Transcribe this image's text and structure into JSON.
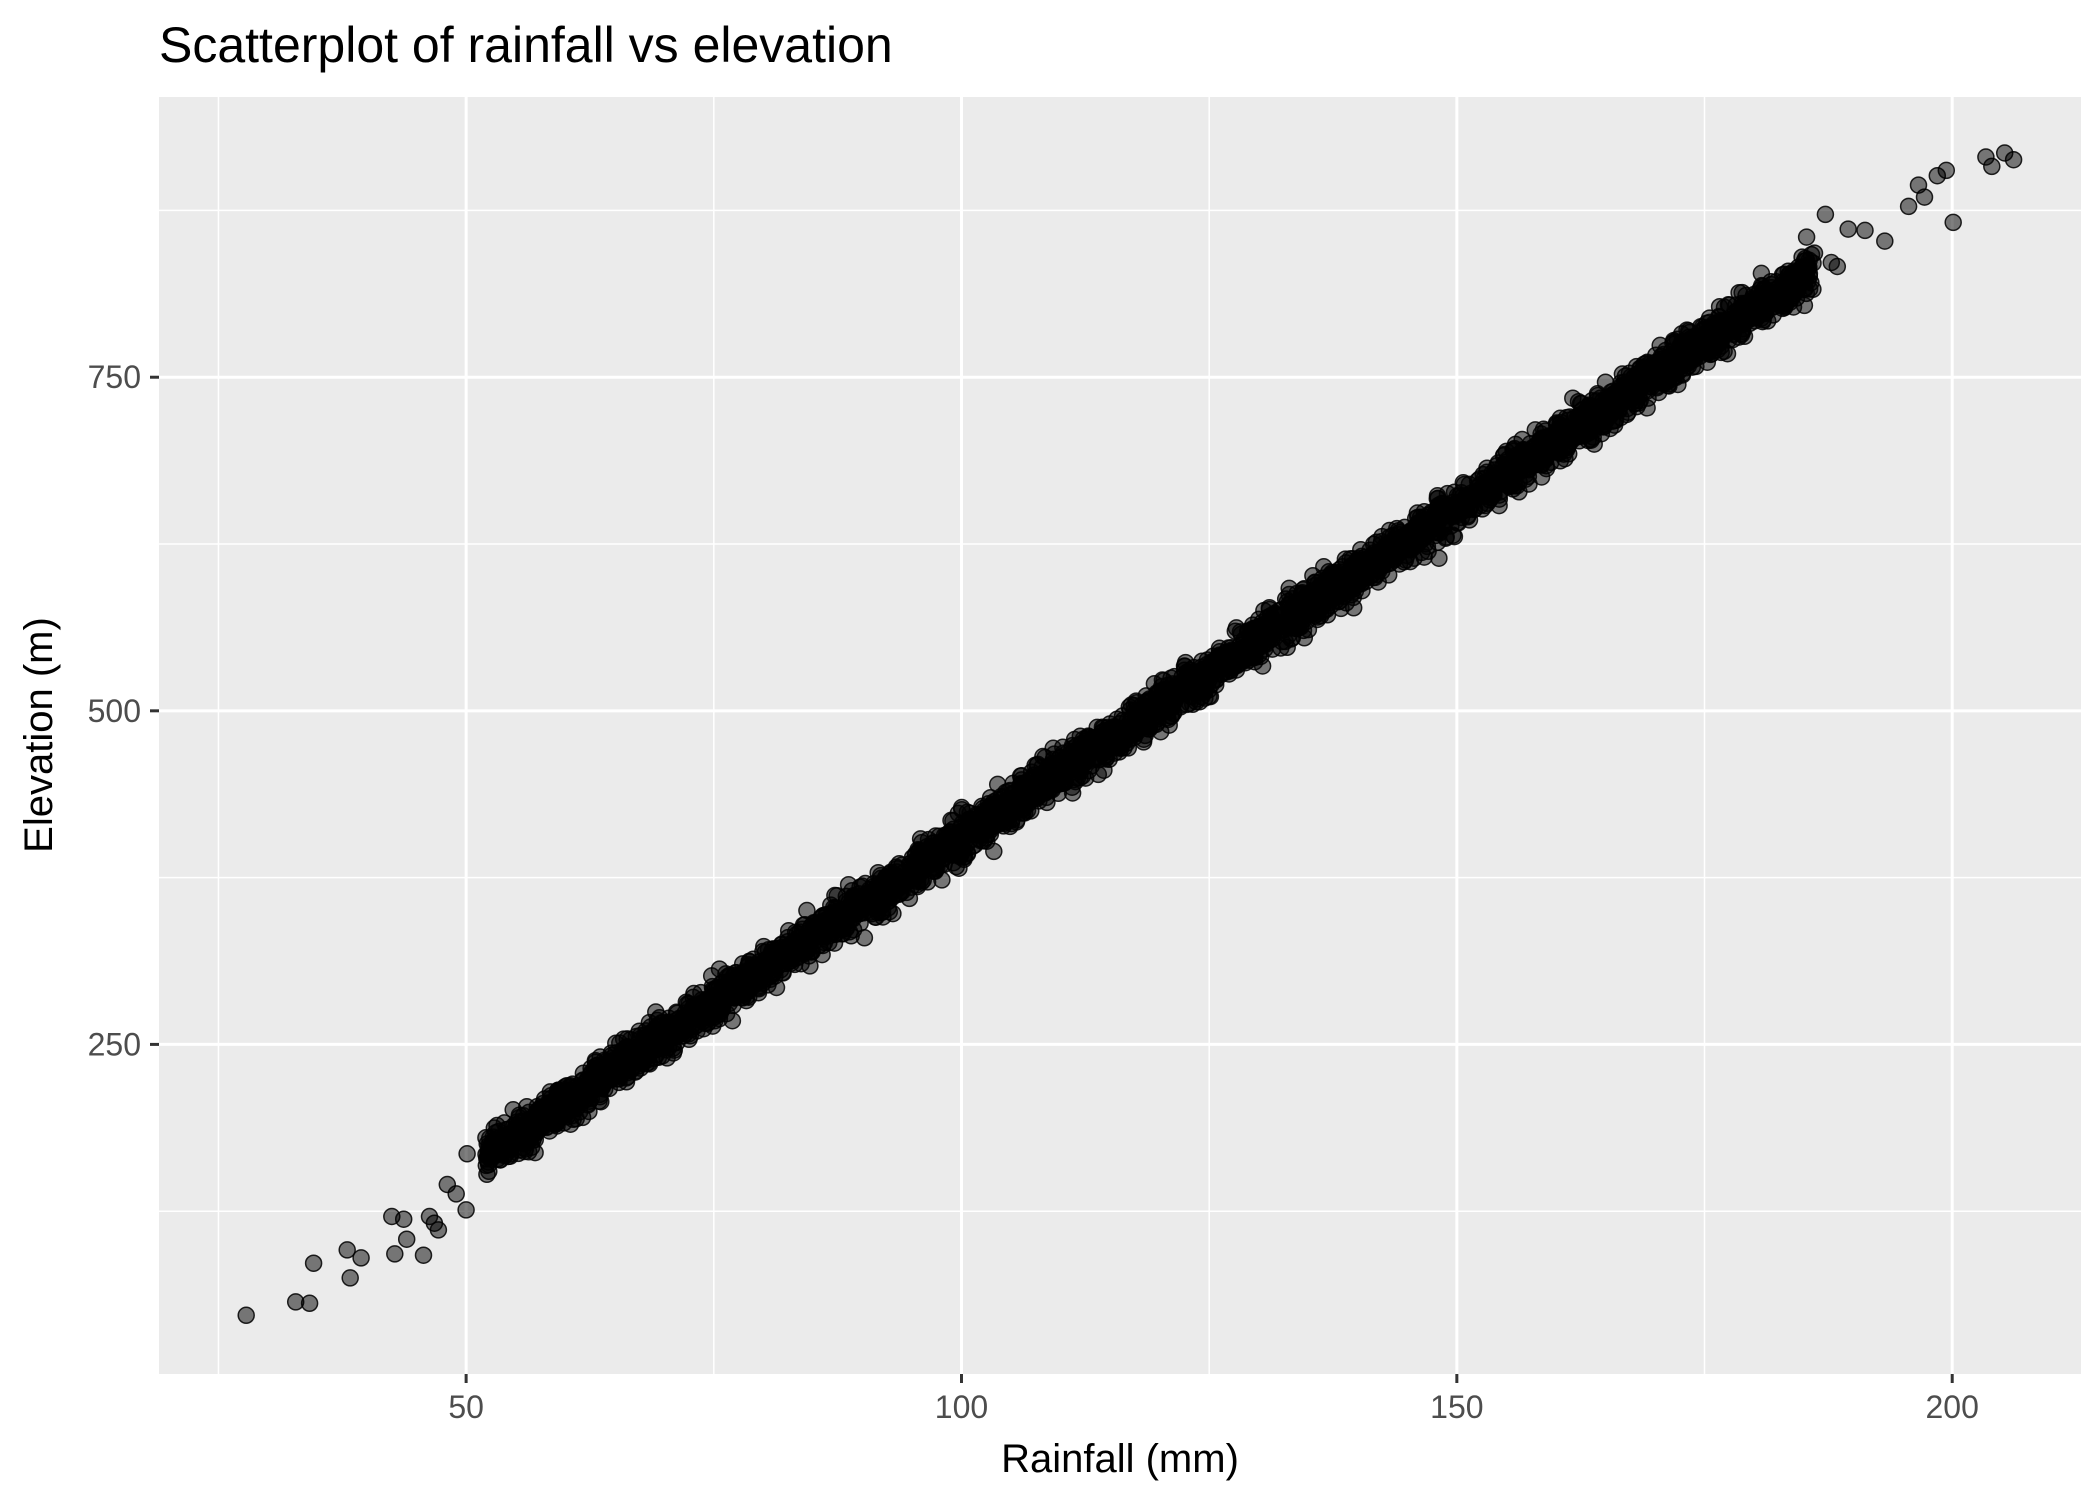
{
  "chart_data": {
    "type": "scatter",
    "title": "Scatterplot of rainfall vs elevation",
    "xlabel": "Rainfall (mm)",
    "ylabel": "Elevation (m)",
    "xlim": [
      19,
      213
    ],
    "ylim": [
      3,
      960
    ],
    "x_ticks": [
      50,
      100,
      150,
      200
    ],
    "y_ticks": [
      250,
      500,
      750
    ],
    "x_minor_ticks": [
      25,
      75,
      125,
      175
    ],
    "y_minor_ticks": [
      125,
      375,
      625,
      875
    ],
    "grid": true,
    "panel_background": "#ebebeb",
    "point_color": "#000000",
    "point_alpha": 0.5,
    "trend": {
      "intercept": -90,
      "slope": 4.95,
      "spread": 14
    },
    "series": [
      {
        "points": [
          [
            27.8,
            47
          ],
          [
            32.8,
            57
          ],
          [
            34.2,
            56
          ],
          [
            34.6,
            86
          ],
          [
            38.0,
            96
          ],
          [
            38.3,
            75
          ],
          [
            39.4,
            90
          ],
          [
            42.5,
            121
          ],
          [
            42.8,
            93
          ],
          [
            43.7,
            119
          ],
          [
            44.0,
            104
          ],
          [
            45.7,
            92
          ],
          [
            46.3,
            121
          ],
          [
            46.8,
            116
          ],
          [
            47.2,
            111
          ],
          [
            48.1,
            145
          ],
          [
            49.0,
            138
          ],
          [
            50.0,
            126
          ],
          [
            50.1,
            168
          ],
          [
            52.0,
            180
          ],
          [
            185.3,
            855
          ],
          [
            186.1,
            843
          ],
          [
            187.2,
            872
          ],
          [
            187.8,
            836
          ],
          [
            188.4,
            833
          ],
          [
            189.5,
            861
          ],
          [
            191.2,
            860
          ],
          [
            193.2,
            852
          ],
          [
            195.6,
            878
          ],
          [
            196.6,
            894
          ],
          [
            197.2,
            885
          ],
          [
            198.5,
            901
          ],
          [
            199.4,
            905
          ],
          [
            200.1,
            866
          ],
          [
            203.4,
            915
          ],
          [
            204.0,
            908
          ],
          [
            205.3,
            918
          ],
          [
            206.2,
            913
          ]
        ]
      }
    ]
  }
}
